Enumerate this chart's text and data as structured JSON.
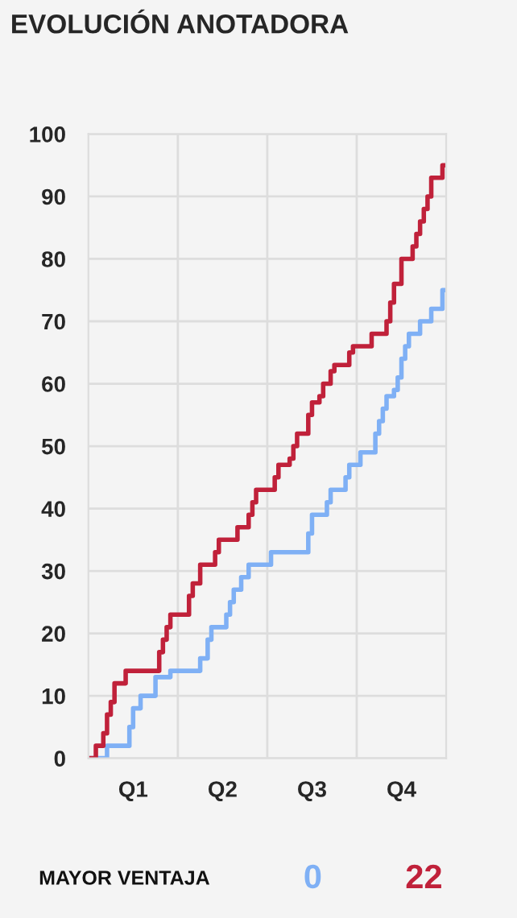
{
  "chart_data": {
    "type": "step",
    "title": "EVOLUCIÓN ANOTADORA",
    "categories": [
      null,
      null,
      null,
      null,
      null,
      null,
      null,
      null,
      null,
      null,
      null,
      null,
      "Q1",
      null,
      null,
      null,
      null,
      null,
      null,
      null,
      null,
      null,
      null,
      null,
      null,
      null,
      null,
      null,
      null,
      null,
      null,
      null,
      null,
      null,
      null,
      null,
      "Q2",
      null,
      null,
      null,
      null,
      null,
      null,
      null,
      null,
      null,
      null,
      null,
      null,
      null,
      null,
      null,
      null,
      null,
      null,
      null,
      null,
      null,
      null,
      null,
      "Q3",
      null,
      null,
      null,
      null,
      null,
      null,
      null,
      null,
      null,
      null,
      null,
      null,
      null,
      null,
      null,
      null,
      null,
      null,
      null,
      null,
      null,
      null,
      null,
      "Q4",
      null,
      null,
      null,
      null,
      null,
      null,
      null,
      null,
      null,
      null,
      null,
      null
    ],
    "ylim": [
      0,
      100
    ],
    "yticks": [
      0,
      10,
      20,
      30,
      40,
      50,
      60,
      70,
      80,
      90,
      100
    ],
    "grid": true,
    "marker": "none",
    "line_style": "solid",
    "series": [
      {
        "color": "#7fb0f5",
        "values": [
          0,
          0,
          0,
          0,
          0,
          2,
          2,
          2,
          2,
          2,
          2,
          5,
          8,
          8,
          10,
          10,
          10,
          10,
          13,
          13,
          13,
          13,
          14,
          14,
          14,
          14,
          14,
          14,
          14,
          14,
          16,
          16,
          19,
          21,
          21,
          21,
          21,
          23,
          25,
          27,
          27,
          29,
          29,
          31,
          31,
          31,
          31,
          31,
          31,
          33,
          33,
          33,
          33,
          33,
          33,
          33,
          33,
          33,
          33,
          36,
          39,
          39,
          39,
          39,
          41,
          43,
          43,
          43,
          43,
          45,
          47,
          47,
          47,
          49,
          49,
          49,
          49,
          52,
          54,
          56,
          58,
          58,
          59,
          61,
          64,
          66,
          68,
          68,
          68,
          70,
          70,
          70,
          72,
          72,
          72,
          75,
          75
        ]
      },
      {
        "color": "#c0213a",
        "values": [
          0,
          0,
          2,
          2,
          4,
          7,
          9,
          12,
          12,
          12,
          14,
          14,
          14,
          14,
          14,
          14,
          14,
          14,
          14,
          17,
          19,
          21,
          23,
          23,
          23,
          23,
          23,
          26,
          28,
          28,
          31,
          31,
          31,
          31,
          33,
          35,
          35,
          35,
          35,
          35,
          37,
          37,
          37,
          39,
          41,
          43,
          43,
          43,
          43,
          43,
          45,
          47,
          47,
          47,
          48,
          50,
          52,
          52,
          52,
          55,
          57,
          57,
          58,
          60,
          60,
          62,
          63,
          63,
          63,
          63,
          65,
          66,
          66,
          66,
          66,
          66,
          68,
          68,
          68,
          68,
          70,
          73,
          76,
          76,
          80,
          80,
          80,
          82,
          84,
          86,
          88,
          90,
          93,
          93,
          93,
          95,
          95
        ]
      }
    ],
    "annotations": [
      "MAYOR VENTAJA",
      "0",
      "22"
    ]
  }
}
